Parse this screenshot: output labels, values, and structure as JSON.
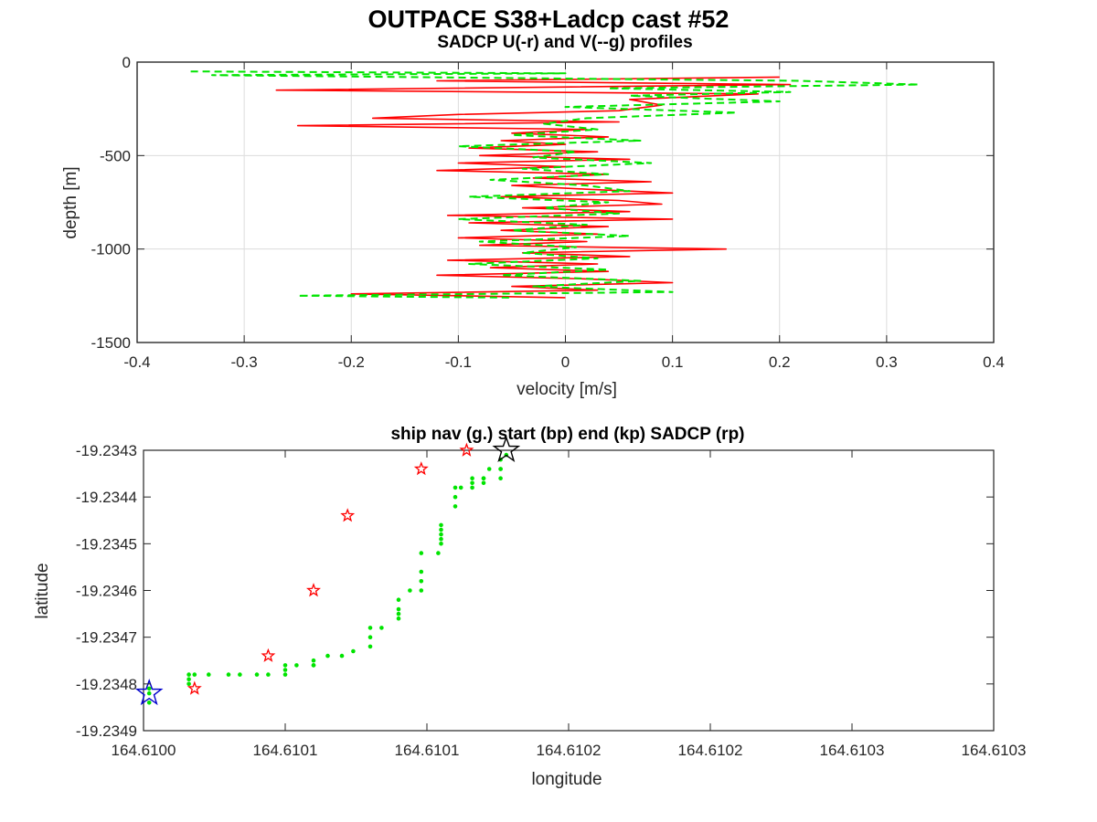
{
  "figure": {
    "title": "OUTPACE S38+Ladcp cast #52"
  },
  "chart_data": [
    {
      "type": "line",
      "title": "SADCP U(-r) and V(--g) profiles",
      "xlabel": "velocity [m/s]",
      "ylabel": "depth [m]",
      "xlim": [
        -0.4,
        0.4
      ],
      "ylim": [
        -1500,
        0
      ],
      "x_ticks": [
        "-0.4",
        "-0.3",
        "-0.2",
        "-0.1",
        "0",
        "0.1",
        "0.2",
        "0.3",
        "0.4"
      ],
      "y_ticks": [
        "0",
        "-500",
        "-1000",
        "-1500"
      ],
      "grid": true,
      "series": [
        {
          "name": "U",
          "color": "#ff0000",
          "style": "solid",
          "depth": [
            -80,
            -100,
            -120,
            -150,
            -170,
            -200,
            -230,
            -260,
            -280,
            -300,
            -320,
            -340,
            -360,
            -380,
            -400,
            -420,
            -440,
            -460,
            -480,
            -500,
            -520,
            -540,
            -560,
            -580,
            -600,
            -620,
            -640,
            -660,
            -680,
            -700,
            -720,
            -740,
            -760,
            -780,
            -800,
            -820,
            -840,
            -860,
            -880,
            -900,
            -920,
            -940,
            -960,
            -980,
            -1000,
            -1020,
            -1040,
            -1060,
            -1080,
            -1100,
            -1120,
            -1140,
            -1160,
            -1180,
            -1200,
            -1220,
            -1240,
            -1260
          ],
          "values": [
            0.2,
            -0.12,
            0.21,
            -0.27,
            0.18,
            0.06,
            0.09,
            0.05,
            -0.1,
            -0.18,
            0.05,
            -0.25,
            0.02,
            -0.05,
            0.04,
            -0.06,
            0.0,
            -0.09,
            0.03,
            -0.08,
            0.06,
            -0.1,
            0.0,
            -0.12,
            0.04,
            -0.03,
            0.08,
            -0.05,
            0.02,
            0.1,
            -0.06,
            0.05,
            0.09,
            -0.04,
            0.06,
            -0.11,
            0.1,
            -0.09,
            0.04,
            -0.06,
            0.03,
            -0.1,
            0.02,
            -0.08,
            0.15,
            -0.04,
            0.06,
            -0.11,
            0.03,
            -0.07,
            0.04,
            -0.12,
            0.02,
            0.1,
            -0.05,
            0.03,
            -0.2,
            0.0
          ]
        },
        {
          "name": "V",
          "color": "#00e400",
          "style": "dashed",
          "depth": [
            -50,
            -60,
            -70,
            -100,
            -120,
            -140,
            -160,
            -180,
            -210,
            -240,
            -270,
            -300,
            -330,
            -360,
            -390,
            -420,
            -450,
            -480,
            -510,
            -540,
            -570,
            -600,
            -630,
            -660,
            -690,
            -720,
            -750,
            -780,
            -810,
            -840,
            -870,
            -900,
            -930,
            -960,
            -990,
            -1020,
            -1050,
            -1080,
            -1110,
            -1140,
            -1170,
            -1200,
            -1230,
            -1250,
            -1260
          ],
          "values": [
            -0.35,
            0.0,
            -0.33,
            0.22,
            0.33,
            0.04,
            0.21,
            0.06,
            0.2,
            0.0,
            0.16,
            0.02,
            -0.02,
            0.03,
            -0.05,
            0.07,
            -0.1,
            0.01,
            -0.03,
            0.08,
            -0.04,
            0.04,
            -0.07,
            0.02,
            0.06,
            -0.09,
            0.04,
            -0.02,
            0.05,
            -0.1,
            0.02,
            -0.05,
            0.06,
            -0.08,
            0.01,
            -0.04,
            0.03,
            -0.09,
            0.04,
            -0.06,
            0.07,
            -0.03,
            0.1,
            -0.25,
            -0.05
          ]
        }
      ]
    },
    {
      "type": "scatter",
      "title": "ship nav (g.) start (bp) end (kp) SADCP (rp)",
      "xlabel": "longitude",
      "ylabel": "latitude",
      "xlim": [
        164.61,
        164.6103
      ],
      "ylim": [
        -19.2349,
        -19.2343
      ],
      "x_ticks": [
        "164.6100",
        "164.6101",
        "164.6101",
        "164.6102",
        "164.6102",
        "164.6103",
        "164.6103"
      ],
      "y_ticks": [
        "-19.2343",
        "-19.2344",
        "-19.2345",
        "-19.2346",
        "-19.2347",
        "-19.2348",
        "-19.2349"
      ],
      "grid": false,
      "ship_nav": {
        "color": "#00e400",
        "lon": [
          164.610002,
          164.610002,
          164.610002,
          164.610016,
          164.610016,
          164.610016,
          164.610018,
          164.610023,
          164.61003,
          164.610034,
          164.61004,
          164.610044,
          164.61005,
          164.61005,
          164.61005,
          164.610054,
          164.61006,
          164.61006,
          164.61006,
          164.610065,
          164.61007,
          164.610074,
          164.61008,
          164.61008,
          164.61008,
          164.610084,
          164.61009,
          164.61009,
          164.61009,
          164.61009,
          164.610094,
          164.610098,
          164.610098,
          164.610098,
          164.610098,
          164.610104,
          164.610105,
          164.610105,
          164.610105,
          164.610105,
          164.610105,
          164.61011,
          164.61011,
          164.61011,
          164.610112,
          164.610116,
          164.610116,
          164.610116,
          164.61012,
          164.61012,
          164.61012,
          164.610122,
          164.610126,
          164.610126,
          164.610126,
          164.610126,
          164.610128
        ],
        "lat": [
          -19.23482,
          -19.23481,
          -19.23484,
          -19.23479,
          -19.2348,
          -19.23478,
          -19.23478,
          -19.23478,
          -19.23478,
          -19.23478,
          -19.23478,
          -19.23478,
          -19.23476,
          -19.23477,
          -19.23478,
          -19.23476,
          -19.23476,
          -19.23475,
          -19.23476,
          -19.23474,
          -19.23474,
          -19.23473,
          -19.23468,
          -19.2347,
          -19.23472,
          -19.23468,
          -19.23462,
          -19.23464,
          -19.23465,
          -19.23466,
          -19.2346,
          -19.23452,
          -19.23456,
          -19.23458,
          -19.2346,
          -19.23452,
          -19.23446,
          -19.23447,
          -19.23448,
          -19.23449,
          -19.2345,
          -19.23438,
          -19.2344,
          -19.23442,
          -19.23438,
          -19.23436,
          -19.23437,
          -19.23438,
          -19.23436,
          -19.23436,
          -19.23437,
          -19.23434,
          -19.23434,
          -19.23434,
          -19.23436,
          -19.23432,
          -19.23431
        ]
      },
      "start": {
        "color": "#0000cc",
        "lon": 164.610002,
        "lat": -19.23482
      },
      "end": {
        "color": "#000000",
        "lon": 164.610128,
        "lat": -19.2343
      },
      "sadcp": {
        "color": "#ff0000",
        "lon": [
          164.610018,
          164.610044,
          164.61006,
          164.610072,
          164.610098,
          164.610114
        ],
        "lat": [
          -19.23481,
          -19.23474,
          -19.2346,
          -19.23444,
          -19.23434,
          -19.2343
        ]
      }
    }
  ]
}
